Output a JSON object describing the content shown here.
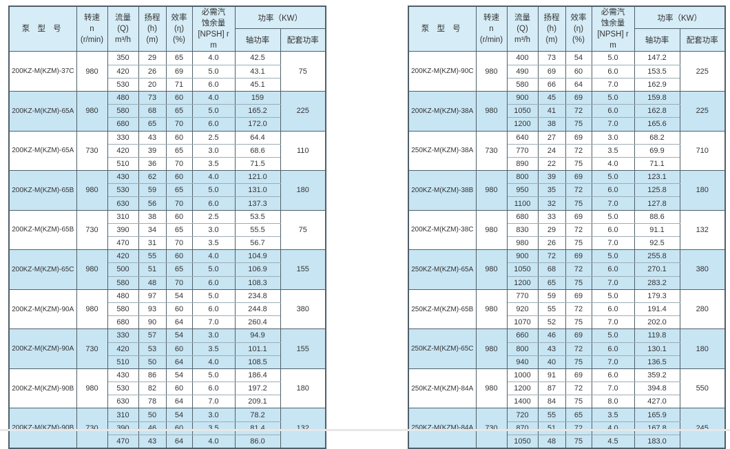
{
  "colors": {
    "border_dark": "#4f5f68",
    "border_light": "#9bacb5",
    "row_highlight": "#c8e5f3",
    "header_bg": "#d6ecf6"
  },
  "table_headers": {
    "model": "泵 型 号",
    "speed": "转速\nn\n(r/min)",
    "flow": "流量\n(Q)\nm³/h",
    "head": "扬程\n(h)\n(m)",
    "efficiency": "效率\n(η)\n(%)",
    "npsh": "必需汽\n蚀余量\n[NPSH] r\nm",
    "power": "功率（KW）",
    "shaft_power": "轴功率",
    "matching_power": "配套功率"
  },
  "tables": [
    {
      "name": "pump-table-left",
      "groups": [
        {
          "model": "200KZ-M(KZM)-37C",
          "speed": "980",
          "highlight": false,
          "matching_power": "75",
          "rows": [
            [
              "350",
              "29",
              "65",
              "4.0",
              "42.5"
            ],
            [
              "420",
              "26",
              "69",
              "5.0",
              "43.1"
            ],
            [
              "530",
              "20",
              "71",
              "6.0",
              "45.1"
            ]
          ]
        },
        {
          "model": "200KZ-M(KZM)-65A",
          "speed": "980",
          "highlight": true,
          "matching_power": "225",
          "rows": [
            [
              "480",
              "73",
              "60",
              "4.0",
              "159"
            ],
            [
              "580",
              "68",
              "65",
              "5.0",
              "165.2"
            ],
            [
              "680",
              "65",
              "70",
              "6.0",
              "172.0"
            ]
          ]
        },
        {
          "model": "200KZ-M(KZM)-65A",
          "speed": "730",
          "highlight": false,
          "matching_power": "110",
          "rows": [
            [
              "330",
              "43",
              "60",
              "2.5",
              "64.4"
            ],
            [
              "420",
              "39",
              "65",
              "3.0",
              "68.6"
            ],
            [
              "510",
              "36",
              "70",
              "3.5",
              "71.5"
            ]
          ]
        },
        {
          "model": "200KZ-M(KZM)-65B",
          "speed": "980",
          "highlight": true,
          "matching_power": "180",
          "rows": [
            [
              "430",
              "62",
              "60",
              "4.0",
              "121.0"
            ],
            [
              "530",
              "59",
              "65",
              "5.0",
              "131.0"
            ],
            [
              "630",
              "56",
              "70",
              "6.0",
              "137.3"
            ]
          ]
        },
        {
          "model": "200KZ-M(KZM)-65B",
          "speed": "730",
          "highlight": false,
          "matching_power": "75",
          "rows": [
            [
              "310",
              "38",
              "60",
              "2.5",
              "53.5"
            ],
            [
              "390",
              "34",
              "65",
              "3.0",
              "55.5"
            ],
            [
              "470",
              "31",
              "70",
              "3.5",
              "56.7"
            ]
          ]
        },
        {
          "model": "200KZ-M(KZM)-65C",
          "speed": "980",
          "highlight": true,
          "matching_power": "155",
          "rows": [
            [
              "420",
              "55",
              "60",
              "4.0",
              "104.9"
            ],
            [
              "500",
              "51",
              "65",
              "5.0",
              "106.9"
            ],
            [
              "580",
              "48",
              "70",
              "6.0",
              "108.3"
            ]
          ]
        },
        {
          "model": "200KZ-M(KZM)-90A",
          "speed": "980",
          "highlight": false,
          "matching_power": "380",
          "rows": [
            [
              "480",
              "97",
              "54",
              "5.0",
              "234.8"
            ],
            [
              "580",
              "93",
              "60",
              "6.0",
              "244.8"
            ],
            [
              "680",
              "90",
              "64",
              "7.0",
              "260.4"
            ]
          ]
        },
        {
          "model": "200KZ-M(KZM)-90A",
          "speed": "730",
          "highlight": true,
          "matching_power": "155",
          "rows": [
            [
              "330",
              "57",
              "54",
              "3.0",
              "94.9"
            ],
            [
              "420",
              "53",
              "60",
              "3.5",
              "101.1"
            ],
            [
              "510",
              "50",
              "64",
              "4.0",
              "108.5"
            ]
          ]
        },
        {
          "model": "200KZ-M(KZM)-90B",
          "speed": "980",
          "highlight": false,
          "matching_power": "180",
          "rows": [
            [
              "430",
              "86",
              "54",
              "5.0",
              "186.4"
            ],
            [
              "530",
              "82",
              "60",
              "6.0",
              "197.2"
            ],
            [
              "630",
              "78",
              "64",
              "7.0",
              "209.1"
            ]
          ]
        },
        {
          "model": "200KZ-M(KZM)-90B",
          "speed": "730",
          "highlight": true,
          "matching_power": "132",
          "rows": [
            [
              "310",
              "50",
              "54",
              "3.0",
              "78.2"
            ],
            [
              "390",
              "46",
              "60",
              "3.5",
              "81.4"
            ],
            [
              "470",
              "43",
              "64",
              "4.0",
              "86.0"
            ]
          ]
        }
      ]
    },
    {
      "name": "pump-table-right",
      "groups": [
        {
          "model": "200KZ-M(KZM)-90C",
          "speed": "980",
          "highlight": false,
          "matching_power": "225",
          "rows": [
            [
              "400",
              "73",
              "54",
              "5.0",
              "147.2"
            ],
            [
              "490",
              "69",
              "60",
              "6.0",
              "153.5"
            ],
            [
              "580",
              "66",
              "64",
              "7.0",
              "162.9"
            ]
          ]
        },
        {
          "model": "200KZ-M(KZM)-38A",
          "speed": "980",
          "highlight": true,
          "matching_power": "225",
          "rows": [
            [
              "900",
              "45",
              "69",
              "5.0",
              "159.8"
            ],
            [
              "1050",
              "41",
              "72",
              "6.0",
              "162.8"
            ],
            [
              "1200",
              "38",
              "75",
              "7.0",
              "165.6"
            ]
          ]
        },
        {
          "model": "250KZ-M(KZM)-38A",
          "speed": "730",
          "highlight": false,
          "matching_power": "710",
          "rows": [
            [
              "640",
              "27",
              "69",
              "3.0",
              "68.2"
            ],
            [
              "770",
              "24",
              "72",
              "3.5",
              "69.9"
            ],
            [
              "890",
              "22",
              "75",
              "4.0",
              "71.1"
            ]
          ]
        },
        {
          "model": "200KZ-M(KZM)-38B",
          "speed": "980",
          "highlight": true,
          "matching_power": "180",
          "rows": [
            [
              "800",
              "39",
              "69",
              "5.0",
              "123.1"
            ],
            [
              "950",
              "35",
              "72",
              "6.0",
              "125.8"
            ],
            [
              "1100",
              "32",
              "75",
              "7.0",
              "127.8"
            ]
          ]
        },
        {
          "model": "200KZ-M(KZM)-38C",
          "speed": "980",
          "highlight": false,
          "matching_power": "132",
          "rows": [
            [
              "680",
              "33",
              "69",
              "5.0",
              "88.6"
            ],
            [
              "830",
              "29",
              "72",
              "6.0",
              "91.1"
            ],
            [
              "980",
              "26",
              "75",
              "7.0",
              "92.5"
            ]
          ]
        },
        {
          "model": "250KZ-M(KZM)-65A",
          "speed": "980",
          "highlight": true,
          "matching_power": "380",
          "rows": [
            [
              "900",
              "72",
              "69",
              "5.0",
              "255.8"
            ],
            [
              "1050",
              "68",
              "72",
              "6.0",
              "270.1"
            ],
            [
              "1200",
              "65",
              "75",
              "7.0",
              "283.2"
            ]
          ]
        },
        {
          "model": "250KZ-M(KZM)-65B",
          "speed": "980",
          "highlight": false,
          "matching_power": "280",
          "rows": [
            [
              "770",
              "59",
              "69",
              "5.0",
              "179.3"
            ],
            [
              "920",
              "55",
              "72",
              "6.0",
              "191.4"
            ],
            [
              "1070",
              "52",
              "75",
              "7.0",
              "202.0"
            ]
          ]
        },
        {
          "model": "250KZ-M(KZM)-65C",
          "speed": "980",
          "highlight": true,
          "matching_power": "180",
          "rows": [
            [
              "660",
              "46",
              "69",
              "5.0",
              "119.8"
            ],
            [
              "800",
              "43",
              "72",
              "6.0",
              "130.1"
            ],
            [
              "940",
              "40",
              "75",
              "7.0",
              "136.5"
            ]
          ]
        },
        {
          "model": "250KZ-M(KZM)-84A",
          "speed": "980",
          "highlight": false,
          "matching_power": "550",
          "rows": [
            [
              "1000",
              "91",
              "69",
              "6.0",
              "359.2"
            ],
            [
              "1200",
              "87",
              "72",
              "7.0",
              "394.8"
            ],
            [
              "1400",
              "84",
              "75",
              "8.0",
              "427.0"
            ]
          ]
        },
        {
          "model": "250KZ-M(KZM)-84A",
          "speed": "730",
          "highlight": true,
          "matching_power": "245",
          "rows": [
            [
              "720",
              "55",
              "65",
              "3.5",
              "165.9"
            ],
            [
              "870",
              "51",
              "72",
              "4.0",
              "167.8"
            ],
            [
              "1050",
              "48",
              "75",
              "4.5",
              "183.0"
            ]
          ]
        }
      ]
    }
  ]
}
